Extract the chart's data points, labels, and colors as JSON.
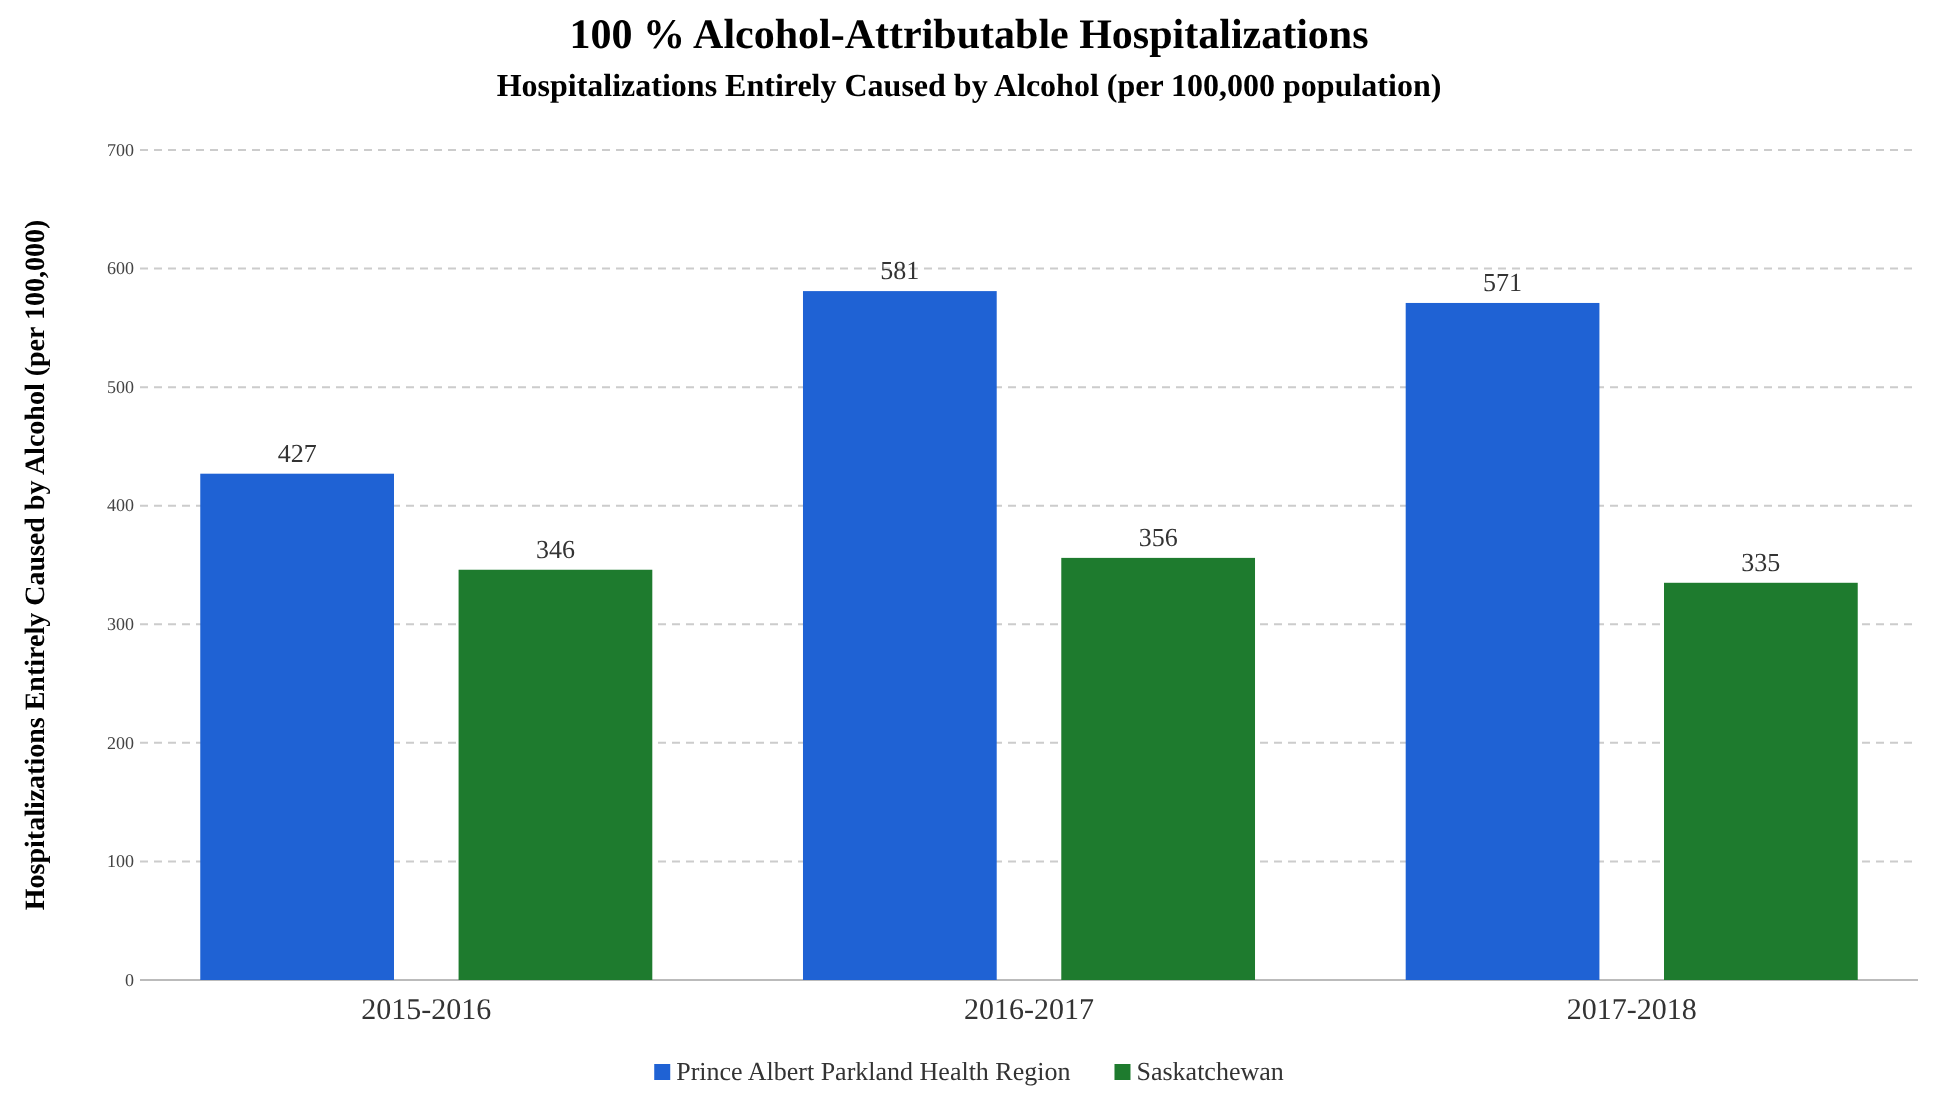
{
  "chart_data": {
    "type": "bar",
    "title": "100 % Alcohol-Attributable Hospitalizations",
    "subtitle": "Hospitalizations Entirely Caused by Alcohol (per 100,000 population)",
    "ylabel": "Hospitalizations Entirely Caused by Alcohol (per 100,000)",
    "categories": [
      "2015-2016",
      "2016-2017",
      "2017-2018"
    ],
    "series": [
      {
        "name": "Prince Albert Parkland Health Region",
        "color": "#1f62d4",
        "values": [
          427,
          581,
          571
        ]
      },
      {
        "name": "Saskatchewan",
        "color": "#1e7b2e",
        "values": [
          346,
          356,
          335
        ]
      }
    ],
    "ylim": [
      0,
      700
    ],
    "yticks": [
      0,
      100,
      200,
      300,
      400,
      500,
      600,
      700
    ],
    "grid": "y",
    "legend": "bottom",
    "data_labels": true
  }
}
